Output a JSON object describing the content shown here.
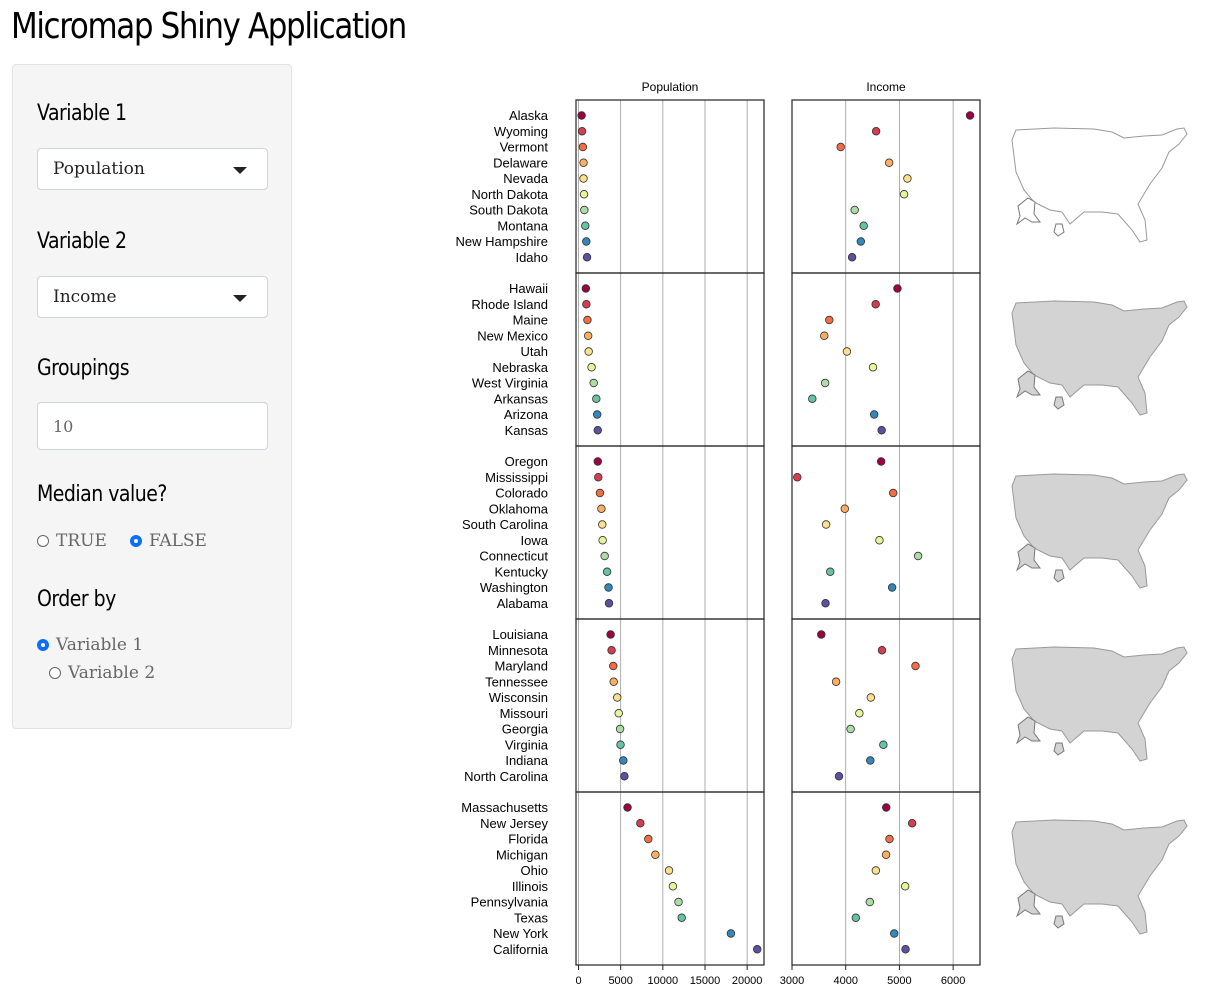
{
  "app": {
    "title": "Micromap Shiny Application"
  },
  "sidebar": {
    "variable1": {
      "label": "Variable 1",
      "value": "Population"
    },
    "variable2": {
      "label": "Variable 2",
      "value": "Income"
    },
    "groupings": {
      "label": "Groupings",
      "value": "10"
    },
    "median": {
      "label": "Median value?",
      "options": [
        "TRUE",
        "FALSE"
      ],
      "selected": "FALSE"
    },
    "order_by": {
      "label": "Order by",
      "options": [
        "Variable 1",
        "Variable 2"
      ],
      "selected": "Variable 1"
    }
  },
  "chart_data": {
    "type": "scatter",
    "subtype": "linked micromap",
    "panel_titles": [
      "Population",
      "Income"
    ],
    "x_ticks": [
      [
        "0",
        "5000",
        "10000",
        "15000",
        "20000"
      ],
      [
        "3000",
        "4000",
        "5000",
        "6000"
      ]
    ],
    "x_ranges": [
      [
        -300,
        22000
      ],
      [
        3000,
        6500
      ]
    ],
    "rank_colors": [
      "#9e0142",
      "#d53e4f",
      "#f46d43",
      "#fdae61",
      "#fee08b",
      "#e6f598",
      "#abdda4",
      "#66c2a5",
      "#3288bd",
      "#5e4fa2"
    ],
    "groups": [
      {
        "states": [
          "Alaska",
          "Wyoming",
          "Vermont",
          "Delaware",
          "Nevada",
          "North Dakota",
          "South Dakota",
          "Montana",
          "New Hampshire",
          "Idaho"
        ],
        "population": [
          365,
          418,
          511,
          595,
          592,
          653,
          690,
          799,
          921,
          1011
        ],
        "income": [
          6315,
          4566,
          3907,
          4809,
          5149,
          5087,
          4167,
          4335,
          4281,
          4119
        ]
      },
      {
        "states": [
          "Hawaii",
          "Rhode Island",
          "Maine",
          "New Mexico",
          "Utah",
          "Nebraska",
          "West Virginia",
          "Arkansas",
          "Arizona",
          "Kansas"
        ],
        "population": [
          868,
          931,
          1058,
          1144,
          1203,
          1544,
          1799,
          2110,
          2212,
          2280
        ],
        "income": [
          4963,
          4558,
          3694,
          3601,
          4022,
          4508,
          3617,
          3378,
          4530,
          4669
        ]
      },
      {
        "states": [
          "Oregon",
          "Mississippi",
          "Colorado",
          "Oklahoma",
          "South Carolina",
          "Iowa",
          "Connecticut",
          "Kentucky",
          "Washington",
          "Alabama"
        ],
        "population": [
          2284,
          2341,
          2541,
          2715,
          2816,
          2861,
          3100,
          3387,
          3559,
          3615
        ],
        "income": [
          4660,
          3098,
          4884,
          3983,
          3635,
          4628,
          5348,
          3712,
          4864,
          3624
        ]
      },
      {
        "states": [
          "Louisiana",
          "Minnesota",
          "Maryland",
          "Tennessee",
          "Wisconsin",
          "Missouri",
          "Georgia",
          "Virginia",
          "Indiana",
          "North Carolina"
        ],
        "population": [
          3806,
          3921,
          4122,
          4173,
          4589,
          4767,
          4931,
          4981,
          5313,
          5441
        ],
        "income": [
          3545,
          4675,
          5299,
          3821,
          4468,
          4254,
          4091,
          4701,
          4458,
          3875
        ]
      },
      {
        "states": [
          "Massachusetts",
          "New Jersey",
          "Florida",
          "Michigan",
          "Ohio",
          "Illinois",
          "Pennsylvania",
          "Texas",
          "New York",
          "California"
        ],
        "population": [
          5814,
          7333,
          8277,
          9111,
          10735,
          11197,
          11860,
          12237,
          18076,
          21198
        ],
        "income": [
          4755,
          5237,
          4815,
          4751,
          4561,
          5107,
          4449,
          4188,
          4903,
          5114
        ]
      }
    ]
  }
}
